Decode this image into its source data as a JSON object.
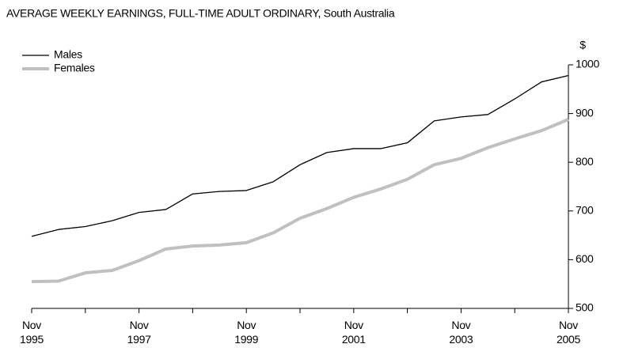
{
  "chart_data": {
    "type": "line",
    "title": "AVERAGE WEEKLY EARNINGS, FULL-TIME ADULT ORDINARY, South Australia",
    "y_label": "$",
    "categories": [
      "Nov 1995",
      null,
      null,
      null,
      "Nov 1997",
      null,
      null,
      null,
      "Nov 1999",
      null,
      null,
      null,
      "Nov 2001",
      null,
      null,
      null,
      "Nov 2003",
      null,
      null,
      null,
      "Nov 2005"
    ],
    "series": [
      {
        "name": "Males",
        "color": "#000000",
        "values": [
          648,
          662,
          668,
          680,
          697,
          703,
          735,
          740,
          742,
          760,
          795,
          820,
          828,
          828,
          840,
          885,
          893,
          898,
          930,
          965,
          978
        ]
      },
      {
        "name": "Females",
        "color": "#c0c0c0",
        "values": [
          555,
          556,
          573,
          578,
          598,
          622,
          628,
          630,
          635,
          655,
          685,
          705,
          728,
          745,
          765,
          795,
          808,
          830,
          848,
          865,
          888
        ]
      }
    ],
    "ylim": [
      500,
      1000
    ],
    "yticks": [
      500,
      600,
      700,
      800,
      900,
      1000
    ],
    "legend": "top-left"
  }
}
